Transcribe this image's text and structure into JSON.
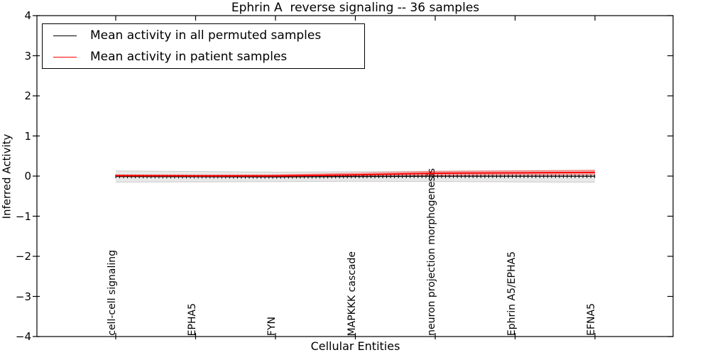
{
  "title": "Ephrin A  reverse signaling -- 36 samples",
  "legend": {
    "items": [
      {
        "label": "Mean activity in all permuted samples",
        "color": "#000000"
      },
      {
        "label": "Mean activity in patient samples",
        "color": "#ff0000"
      }
    ],
    "position": "upper left"
  },
  "chart_data": {
    "type": "line",
    "title": "Ephrin A  reverse signaling -- 36 samples",
    "xlabel": "Cellular Entities",
    "ylabel": "Inferred Activity",
    "ylim": [
      -4,
      4
    ],
    "yticks": [
      4,
      3,
      2,
      1,
      0,
      -1,
      -2,
      -3,
      -4
    ],
    "grid": false,
    "legend_position": "upper left",
    "categories": [
      "cell-cell signaling",
      "EPHA5",
      "FYN",
      "MAPKKK cascade",
      "neuron projection morphogenesis",
      "Ephrin A5/EPHA5",
      "EFNA5"
    ],
    "series": [
      {
        "name": "Mean activity in all permuted samples",
        "color": "#000000",
        "values": [
          -0.01,
          -0.015,
          -0.02,
          -0.01,
          -0.005,
          -0.005,
          -0.005
        ],
        "band_halfwidth": [
          0.14,
          0.13,
          0.12,
          0.12,
          0.13,
          0.14,
          0.15
        ],
        "band_fill": "rgba(0,0,0,0.09)",
        "band_edge": "rgba(0,0,0,0.16)",
        "markers": "vline"
      },
      {
        "name": "Mean activity in patient samples",
        "color": "#ff0000",
        "values": [
          0.01,
          0.005,
          0.005,
          0.03,
          0.07,
          0.08,
          0.09
        ],
        "band_halfwidth": [
          0.02,
          0.02,
          0.025,
          0.04,
          0.05,
          0.05,
          0.055
        ],
        "band_fill": "rgba(255,0,0,0.20)",
        "band_edge": "rgba(255,60,60,0.55)",
        "markers": "none"
      }
    ],
    "zero_line": {
      "y": 0,
      "style": "dotted",
      "color": "#000000"
    }
  }
}
